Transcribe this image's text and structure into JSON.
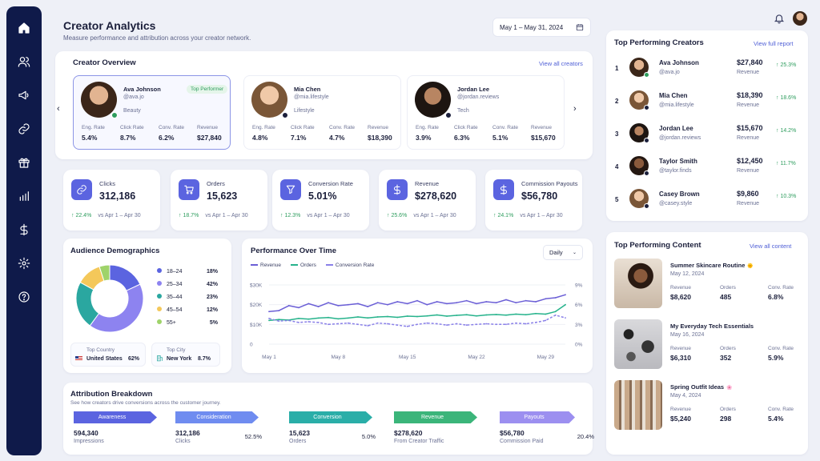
{
  "header": {
    "title": "Creator Analytics",
    "subtitle": "Measure performance and attribution across your creator network.",
    "date_range": "May 1 – May 31, 2024"
  },
  "sidebar": {
    "items": [
      {
        "icon": "home-icon"
      },
      {
        "icon": "users-icon"
      },
      {
        "icon": "megaphone-icon"
      },
      {
        "icon": "link-icon"
      },
      {
        "icon": "gift-icon"
      },
      {
        "icon": "bar-chart-icon"
      },
      {
        "icon": "dollar-icon"
      },
      {
        "icon": "gear-icon"
      },
      {
        "icon": "help-icon"
      }
    ]
  },
  "overview": {
    "title": "Creator Overview",
    "link": "View all creators",
    "stat_labels": [
      "Eng. Rate",
      "Click Rate",
      "Conv. Rate",
      "Revenue"
    ],
    "cards": [
      {
        "name": "Ava Johnson",
        "handle": "@ava.jo",
        "category": "Beauty",
        "tag": "Top Performer",
        "stats": [
          "5.4%",
          "8.7%",
          "6.2%",
          "$27,840"
        ]
      },
      {
        "name": "Mia Chen",
        "handle": "@mia.lifestyle",
        "category": "Lifestyle",
        "tag": "",
        "stats": [
          "4.8%",
          "7.1%",
          "4.7%",
          "$18,390"
        ]
      },
      {
        "name": "Jordan Lee",
        "handle": "@jordan.reviews",
        "category": "Tech",
        "tag": "",
        "stats": [
          "3.9%",
          "6.3%",
          "5.1%",
          "$15,670"
        ]
      }
    ]
  },
  "kpis": [
    {
      "label": "Clicks",
      "value": "312,186",
      "delta": "22.4%",
      "compare": "vs Apr 1 – Apr 30",
      "icon": "link-icon"
    },
    {
      "label": "Orders",
      "value": "15,623",
      "delta": "18.7%",
      "compare": "vs Apr 1 – Apr 30",
      "icon": "cart-icon"
    },
    {
      "label": "Conversion Rate",
      "value": "5.01%",
      "delta": "12.3%",
      "compare": "vs Apr 1 – Apr 30",
      "icon": "funnel-icon"
    },
    {
      "label": "Revenue",
      "value": "$278,620",
      "delta": "25.6%",
      "compare": "vs Apr 1 – Apr 30",
      "icon": "dollar-icon"
    },
    {
      "label": "Commission Payouts",
      "value": "$56,780",
      "delta": "24.1%",
      "compare": "vs Apr 1 – Apr 30",
      "icon": "dollar-icon"
    }
  ],
  "demographics": {
    "title": "Audience Demographics",
    "segments": [
      {
        "label": "18–24",
        "pct": "18%",
        "value": 18,
        "color": "#5b64e0"
      },
      {
        "label": "25–34",
        "pct": "42%",
        "value": 42,
        "color": "#8d83f0"
      },
      {
        "label": "35–44",
        "pct": "23%",
        "value": 23,
        "color": "#2aa7a0"
      },
      {
        "label": "45–54",
        "pct": "12%",
        "value": 12,
        "color": "#f4c85a"
      },
      {
        "label": "55+",
        "pct": "5%",
        "value": 5,
        "color": "#9fd36a"
      }
    ],
    "top_country_label": "Top Country",
    "top_country": "United States",
    "top_country_pct": "62%",
    "top_city_label": "Top City",
    "top_city": "New York",
    "top_city_pct": "8.7%"
  },
  "performance": {
    "title": "Performance Over Time",
    "dropdown": "Daily",
    "legend": [
      "Revenue",
      "Orders",
      "Conversion Rate"
    ]
  },
  "chart_data": {
    "type": "line",
    "title": "Performance Over Time",
    "x_ticks": [
      "May 1",
      "May 8",
      "May 15",
      "May 22",
      "May 29"
    ],
    "y_left_ticks": [
      "$30K",
      "$20K",
      "$10K",
      "0"
    ],
    "y_right_ticks": [
      "9%",
      "6%",
      "3%",
      "0%"
    ],
    "ylim_left": [
      0,
      30000
    ],
    "ylim_right": [
      0,
      9
    ],
    "x": [
      1,
      2,
      3,
      4,
      5,
      6,
      7,
      8,
      9,
      10,
      11,
      12,
      13,
      14,
      15,
      16,
      17,
      18,
      19,
      20,
      21,
      22,
      23,
      24,
      25,
      26,
      27,
      28,
      29,
      30,
      31
    ],
    "series": [
      {
        "name": "Revenue",
        "axis": "left",
        "color": "#6b5fd6",
        "values": [
          16500,
          17000,
          19500,
          18500,
          20500,
          19000,
          21000,
          19500,
          20000,
          20500,
          19000,
          21000,
          20000,
          21500,
          20500,
          22000,
          20000,
          21500,
          20500,
          21000,
          22000,
          20500,
          21500,
          21000,
          22500,
          21000,
          22000,
          21500,
          23000,
          23500,
          25000
        ]
      },
      {
        "name": "Orders",
        "axis": "left",
        "color": "#27b38c",
        "values": [
          12000,
          12500,
          12200,
          13000,
          12700,
          13200,
          13500,
          12800,
          13200,
          13800,
          13300,
          13800,
          14000,
          13600,
          14200,
          14000,
          14300,
          14800,
          14200,
          14600,
          14900,
          14300,
          14800,
          15000,
          14700,
          15200,
          14900,
          15500,
          15200,
          16500,
          20000
        ]
      },
      {
        "name": "Conversion Rate",
        "axis": "right",
        "color": "#8a80e8",
        "dashed": true,
        "values": [
          3.9,
          3.5,
          3.6,
          3.3,
          3.4,
          3.3,
          3.0,
          3.1,
          3.2,
          3.0,
          2.8,
          3.2,
          3.1,
          2.9,
          2.7,
          3.0,
          3.2,
          3.1,
          2.9,
          3.1,
          2.9,
          3.0,
          3.1,
          3.0,
          3.0,
          3.2,
          3.1,
          3.3,
          3.6,
          4.4,
          4.0
        ]
      }
    ]
  },
  "attribution": {
    "title": "Attribution Breakdown",
    "subtitle": "See how creators drive conversions across the customer journey.",
    "stages": [
      {
        "stage": "Awareness",
        "value": "594,340",
        "label": "Impressions",
        "pct": "",
        "color": "#5b64e0"
      },
      {
        "stage": "Consideration",
        "value": "312,186",
        "label": "Clicks",
        "pct": "52.5%",
        "color": "#6f8cf0"
      },
      {
        "stage": "Conversion",
        "value": "15,623",
        "label": "Orders",
        "pct": "5.0%",
        "color": "#2aaea8"
      },
      {
        "stage": "Revenue",
        "value": "$278,620",
        "label": "From Creator Traffic",
        "pct": "",
        "color": "#3bb57a"
      },
      {
        "stage": "Payouts",
        "value": "$56,780",
        "label": "Commission Paid",
        "pct": "20.4%",
        "color": "#9c8ff0"
      }
    ]
  },
  "top_creators": {
    "title": "Top Performing Creators",
    "link": "View full report",
    "revenue_label": "Revenue",
    "rows": [
      {
        "rank": "1",
        "name": "Ava Johnson",
        "handle": "@ava.jo",
        "revenue": "$27,840",
        "growth": "25.3%"
      },
      {
        "rank": "2",
        "name": "Mia Chen",
        "handle": "@mia.lifestyle",
        "revenue": "$18,390",
        "growth": "18.6%"
      },
      {
        "rank": "3",
        "name": "Jordan Lee",
        "handle": "@jordan.reviews",
        "revenue": "$15,670",
        "growth": "14.2%"
      },
      {
        "rank": "4",
        "name": "Taylor Smith",
        "handle": "@taylor.finds",
        "revenue": "$12,450",
        "growth": "11.7%"
      },
      {
        "rank": "5",
        "name": "Casey Brown",
        "handle": "@casey.style",
        "revenue": "$9,860",
        "growth": "10.3%"
      }
    ]
  },
  "top_content": {
    "title": "Top Performing Content",
    "link": "View all content",
    "col_labels": [
      "Revenue",
      "Orders",
      "Conv. Rate"
    ],
    "rows": [
      {
        "title": "Summer Skincare Routine",
        "emoji": "🌞",
        "date": "May 12, 2024",
        "revenue": "$8,620",
        "orders": "485",
        "conv": "6.8%"
      },
      {
        "title": "My Everyday Tech Essentials",
        "emoji": "",
        "date": "May 16, 2024",
        "revenue": "$6,310",
        "orders": "352",
        "conv": "5.9%"
      },
      {
        "title": "Spring Outfit Ideas",
        "emoji": "🌸",
        "date": "May 4, 2024",
        "revenue": "$5,240",
        "orders": "298",
        "conv": "5.4%"
      }
    ]
  }
}
